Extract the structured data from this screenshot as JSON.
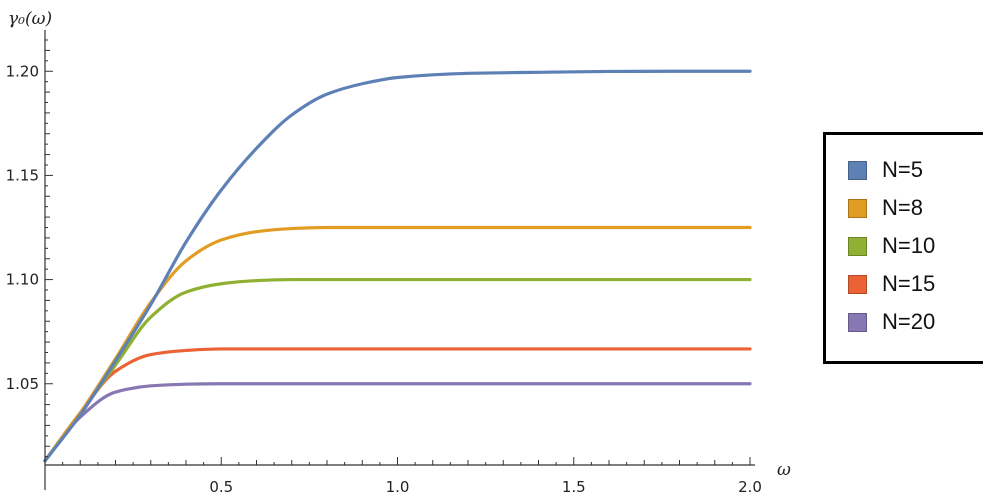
{
  "chart_data": {
    "type": "line",
    "title": "",
    "xlabel": "ω",
    "ylabel": "γ₀(ω)",
    "xlim": [
      0,
      2.0
    ],
    "ylim": [
      1.011,
      1.215
    ],
    "x_ticks": [
      0.5,
      1.0,
      1.5,
      2.0
    ],
    "x_tick_labels": [
      "0.5",
      "1.0",
      "1.5",
      "2.0"
    ],
    "y_ticks": [
      1.05,
      1.1,
      1.15,
      1.2
    ],
    "y_tick_labels": [
      "1.05",
      "1.10",
      "1.15",
      "1.20"
    ],
    "grid": false,
    "legend_position": "right",
    "series": [
      {
        "name": "N=5",
        "color": "#5e81b5",
        "x": [
          0,
          0.1,
          0.2,
          0.3,
          0.4,
          0.5,
          0.6,
          0.7,
          0.8,
          0.9,
          1.0,
          1.2,
          1.4,
          1.6,
          1.8,
          2.0
        ],
        "y": [
          1.013,
          1.035,
          1.061,
          1.088,
          1.118,
          1.143,
          1.163,
          1.179,
          1.189,
          1.194,
          1.197,
          1.199,
          1.1995,
          1.1999,
          1.2,
          1.2
        ]
      },
      {
        "name": "N=8",
        "color": "#e19c24",
        "x": [
          0,
          0.1,
          0.2,
          0.3,
          0.4,
          0.5,
          0.6,
          0.7,
          0.8,
          1.0,
          1.2,
          1.5,
          2.0
        ],
        "y": [
          1.013,
          1.036,
          1.062,
          1.089,
          1.109,
          1.119,
          1.123,
          1.1245,
          1.125,
          1.125,
          1.125,
          1.125,
          1.125
        ]
      },
      {
        "name": "N=10",
        "color": "#8fb032",
        "x": [
          0,
          0.1,
          0.2,
          0.3,
          0.4,
          0.5,
          0.6,
          0.7,
          0.8,
          1.0,
          1.5,
          2.0
        ],
        "y": [
          1.013,
          1.036,
          1.059,
          1.082,
          1.094,
          1.098,
          1.0995,
          1.1,
          1.1,
          1.1,
          1.1,
          1.1
        ]
      },
      {
        "name": "N=15",
        "color": "#eb6235",
        "x": [
          0,
          0.1,
          0.2,
          0.3,
          0.4,
          0.5,
          0.6,
          0.8,
          1.0,
          1.5,
          2.0
        ],
        "y": [
          1.013,
          1.036,
          1.056,
          1.064,
          1.066,
          1.0667,
          1.0667,
          1.0667,
          1.0667,
          1.0667,
          1.0667
        ]
      },
      {
        "name": "N=20",
        "color": "#8778b3",
        "x": [
          0,
          0.1,
          0.2,
          0.3,
          0.4,
          0.5,
          0.6,
          0.8,
          1.0,
          1.5,
          2.0
        ],
        "y": [
          1.013,
          1.034,
          1.046,
          1.049,
          1.0498,
          1.05,
          1.05,
          1.05,
          1.05,
          1.05,
          1.05
        ]
      }
    ]
  }
}
